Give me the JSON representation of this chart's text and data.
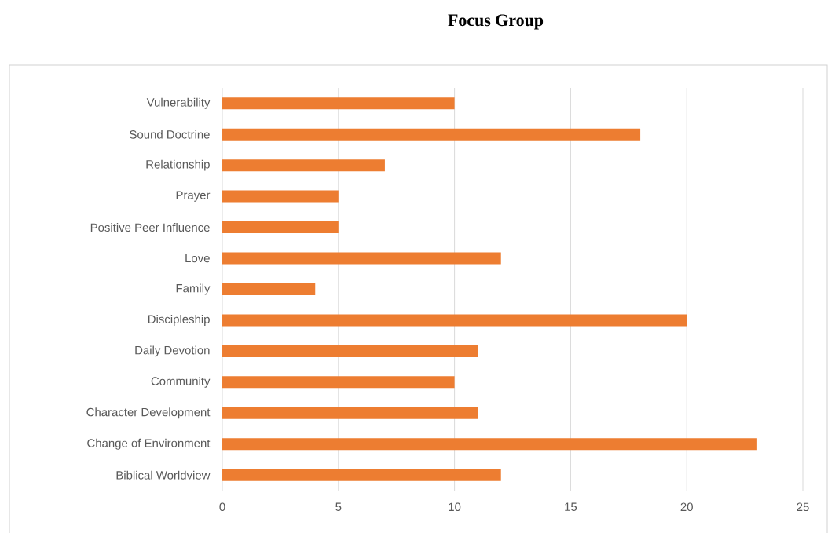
{
  "chart_data": {
    "type": "bar",
    "orientation": "horizontal",
    "title": "Focus Group",
    "categories": [
      "Vulnerability",
      "Sound Doctrine",
      "Relationship",
      "Prayer",
      "Positive Peer Influence",
      "Love",
      "Family",
      "Discipleship",
      "Daily Devotion",
      "Community",
      "Character Development",
      "Change of Environment",
      "Biblical Worldview"
    ],
    "values": [
      10,
      18,
      7,
      5,
      5,
      12,
      4,
      20,
      11,
      10,
      11,
      23,
      12
    ],
    "color": "#ed7d31",
    "xlim": [
      0,
      25
    ],
    "xticks": [
      0,
      5,
      10,
      15,
      20,
      25
    ],
    "grid": "x"
  }
}
